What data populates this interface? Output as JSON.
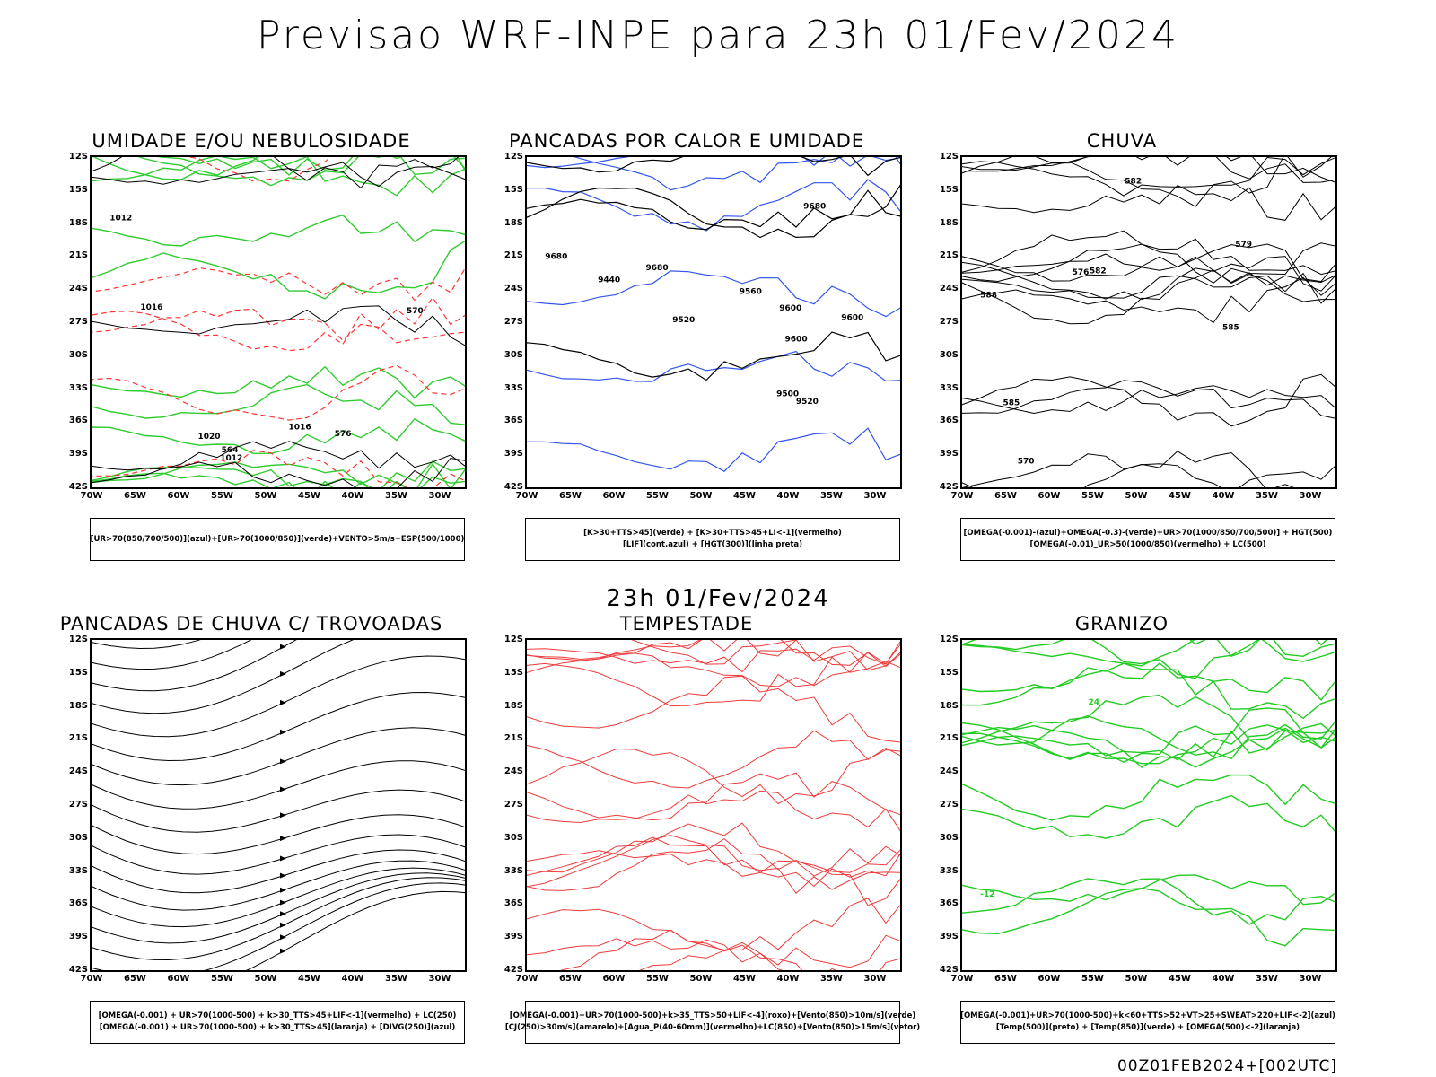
{
  "main_title": "Previsao WRF-INPE  para 23h 01/Fev/2024",
  "mid_title": "23h 01/Fev/2024",
  "footer": "00Z01FEB2024+[002UTC]",
  "lat_labels": [
    "12S",
    "15S",
    "18S",
    "21S",
    "24S",
    "27S",
    "30S",
    "33S",
    "36S",
    "39S",
    "42S"
  ],
  "lon_labels": [
    "70W",
    "65W",
    "60W",
    "55W",
    "50W",
    "45W",
    "40W",
    "35W",
    "30W"
  ],
  "panels": [
    {
      "title": "UMIDADE E/OU NEBULOSIDADE",
      "legend": [
        "[UR>70(850/700/500)](azul)+[UR>70(1000/850)](verde)+VENTO>5m/s+ESP(500/1000)"
      ],
      "contour_labels": [
        "1012",
        "1016",
        "1020",
        "576",
        "570",
        "564",
        "1016",
        "1012"
      ],
      "colors": {
        "fill_primary": "#b8b8f0",
        "fill_secondary": "#2ecc2e",
        "line_primary": "#000000",
        "line_secondary": "#ff3333"
      }
    },
    {
      "title": "PANCADAS POR CALOR E UMIDADE",
      "legend": [
        "[K>30+TTS>45](verde) + [K>30+TTS>45+LI<-1](vermelho)",
        "[LIF](cont.azul) + [HGT(300)](linha preta)"
      ],
      "contour_labels": [
        "9680",
        "9680",
        "9680",
        "9600",
        "9560",
        "9600",
        "9600",
        "9520",
        "9520",
        "9500",
        "9440"
      ],
      "colors": {
        "fill_primary": "#f03c3c",
        "fill_secondary": "#234848",
        "line_primary": "#000000",
        "line_secondary": "#3355ee"
      }
    },
    {
      "title": "CHUVA",
      "legend": [
        "[OMEGA(-0.001)-(azul)+OMEGA(-0.3)-(verde)+UR>70(1000/850/700/500)] + HGT(500)",
        "[OMEGA(-0.01)_UR>50(1000/850)(vermelho) + LC(500)"
      ],
      "contour_labels": [
        "588",
        "585",
        "582",
        "579",
        "576",
        "570",
        "585",
        "582"
      ],
      "colors": {
        "fill_primary": "#f03c3c",
        "fill_secondary": "#2255ee",
        "line_primary": "#000000",
        "line_secondary": "#22bb22"
      }
    },
    {
      "title": "PANCADAS DE CHUVA C/ TROVOADAS",
      "legend": [
        "[OMEGA(-0.001) + UR>70(1000-500) + k>30_TTS>45+LIF<-1](vermelho) + LC(250)",
        "[OMEGA(-0.001) + UR>70(1000-500) + k>30_TTS>45](laranja) + [DIVG(250)](azul)"
      ],
      "contour_labels": [],
      "colors": {
        "fill_primary": "#f03c3c",
        "fill_secondary": "#f08a28",
        "line_primary": "#000000",
        "line_secondary": "#2255ee"
      }
    },
    {
      "title": "TEMPESTADE",
      "legend": [
        "[OMEGA(-0.001)+UR>70(1000-500)+k>35_TTS>50+LIF<-4](roxo)+[Vento(850)>10m/s](verde)",
        "[CJ(250)>30m/s](amarelo)+[Agua_P(40-60mm)](vermelho)+LC(850)+[Vento(850)>15m/s](vetor)"
      ],
      "contour_labels": [],
      "colors": {
        "fill_primary": "#e6dd30",
        "fill_secondary": "#22aa22",
        "line_primary": "#ee3b3b",
        "line_secondary": "#000000"
      }
    },
    {
      "title": "GRANIZO",
      "legend": [
        "[OMEGA(-0.001)+UR>70(1000-500)+k<60+TTS>52+VT>25+SWEAT>220+LIF<-2](azul)",
        "[Temp(500)](preto) + [Temp(850)](verde) + [OMEGA(500)<-2](laranja)"
      ],
      "contour_labels": [
        "-12",
        "24"
      ],
      "colors": {
        "fill_primary": "#f08a28",
        "fill_secondary": "#2255ee",
        "line_primary": "#22cc22",
        "line_secondary": "#000000"
      }
    }
  ]
}
